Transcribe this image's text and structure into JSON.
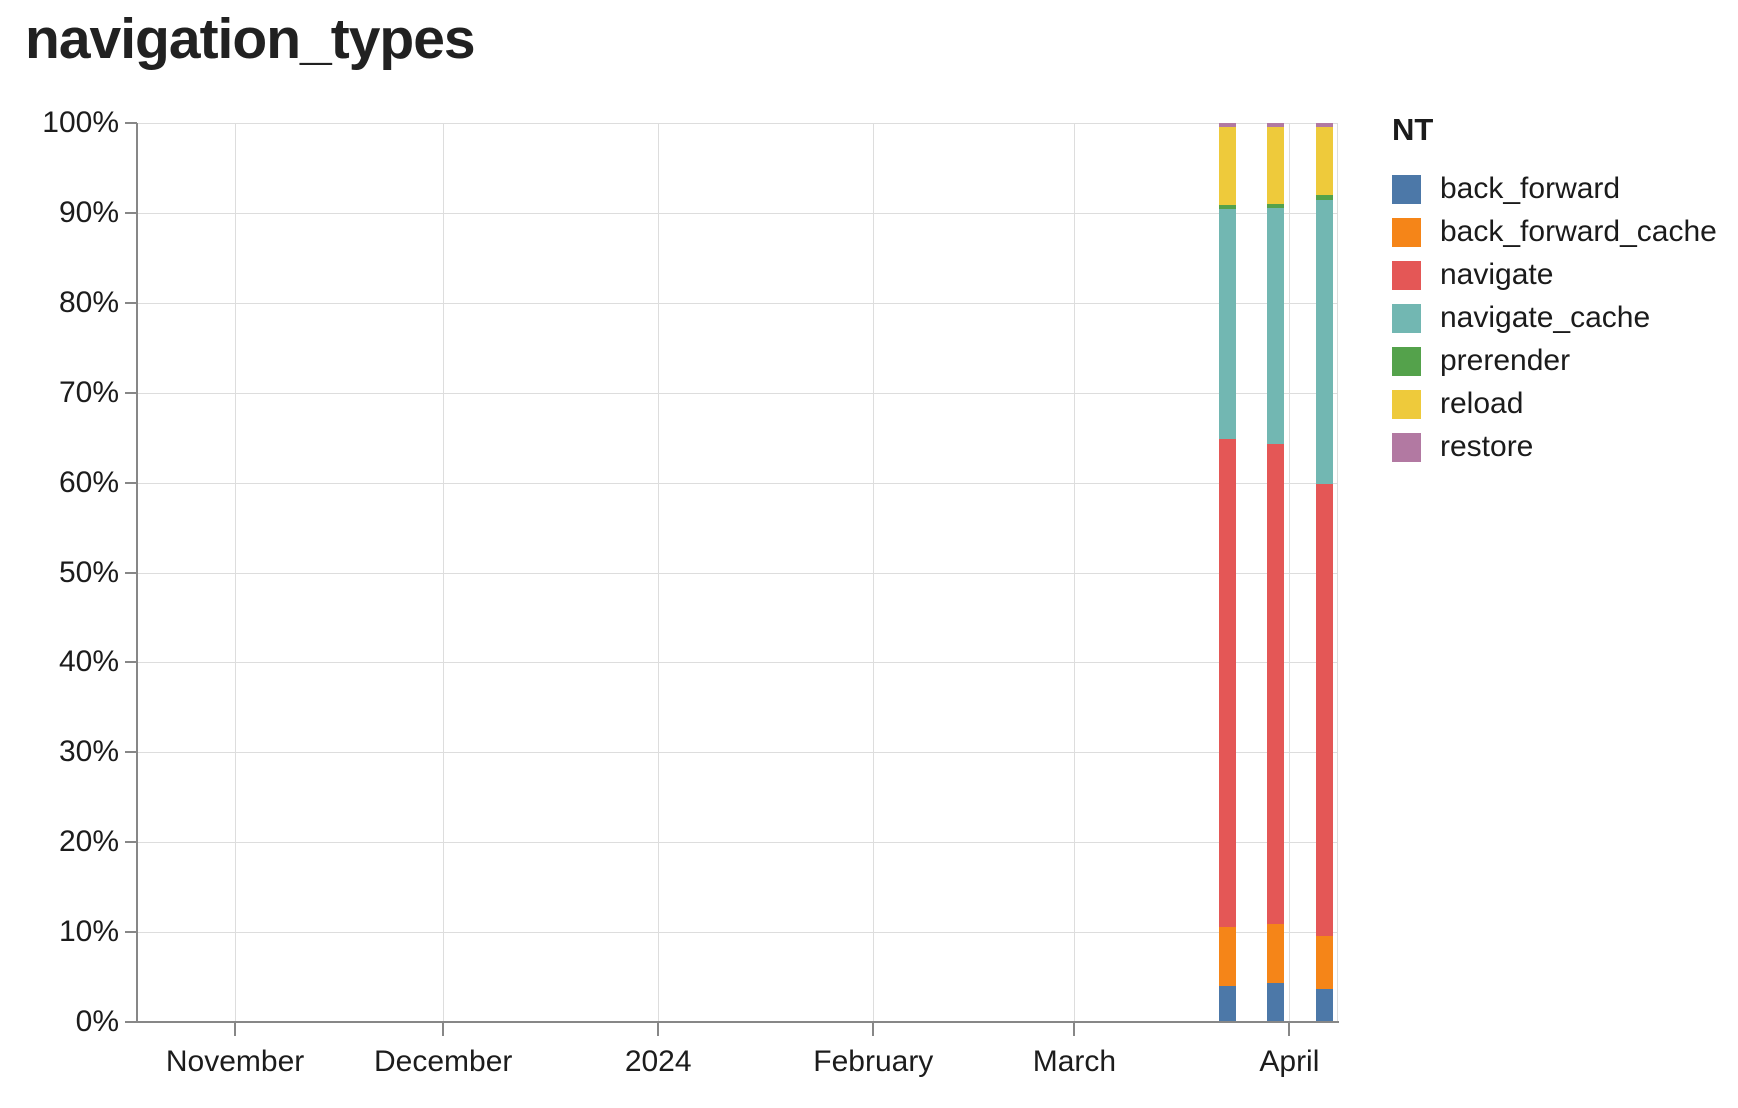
{
  "title": "navigation_types",
  "legend": {
    "title": "NT",
    "position": "right"
  },
  "chart_data": {
    "type": "bar",
    "stacked": true,
    "normalized": "percent",
    "title": "navigation_types",
    "xlabel": "",
    "ylabel": "",
    "ylim": [
      0,
      100
    ],
    "grid": true,
    "legend_position": "right",
    "x_type": "time",
    "x_domain": [
      "2023-10-18",
      "2024-04-08"
    ],
    "x_ticks": [
      {
        "date": "2023-11-01",
        "label": "November"
      },
      {
        "date": "2023-12-01",
        "label": "December"
      },
      {
        "date": "2024-01-01",
        "label": "2024"
      },
      {
        "date": "2024-02-01",
        "label": "February"
      },
      {
        "date": "2024-03-01",
        "label": "March"
      },
      {
        "date": "2024-04-01",
        "label": "April"
      }
    ],
    "y_ticks": [
      {
        "value": 0,
        "label": "0%"
      },
      {
        "value": 10,
        "label": "10%"
      },
      {
        "value": 20,
        "label": "20%"
      },
      {
        "value": 30,
        "label": "30%"
      },
      {
        "value": 40,
        "label": "40%"
      },
      {
        "value": 50,
        "label": "50%"
      },
      {
        "value": 60,
        "label": "60%"
      },
      {
        "value": 70,
        "label": "70%"
      },
      {
        "value": 80,
        "label": "80%"
      },
      {
        "value": 90,
        "label": "90%"
      },
      {
        "value": 100,
        "label": "100%"
      }
    ],
    "categories": [
      "2024-03-23",
      "2024-03-30",
      "2024-04-06"
    ],
    "series": [
      {
        "name": "back_forward",
        "color": "#4c78a8",
        "values": [
          4.0,
          4.3,
          3.7
        ]
      },
      {
        "name": "back_forward_cache",
        "color": "#f58518",
        "values": [
          6.6,
          6.6,
          5.9
        ]
      },
      {
        "name": "navigate",
        "color": "#e45756",
        "values": [
          54.3,
          53.4,
          50.3
        ]
      },
      {
        "name": "navigate_cache",
        "color": "#72b7b2",
        "values": [
          25.5,
          26.2,
          31.5
        ]
      },
      {
        "name": "prerender",
        "color": "#54a24b",
        "values": [
          0.5,
          0.5,
          0.6
        ]
      },
      {
        "name": "reload",
        "color": "#eeca3b",
        "values": [
          8.7,
          8.6,
          7.6
        ]
      },
      {
        "name": "restore",
        "color": "#b279a2",
        "values": [
          0.4,
          0.4,
          0.4
        ]
      }
    ]
  }
}
